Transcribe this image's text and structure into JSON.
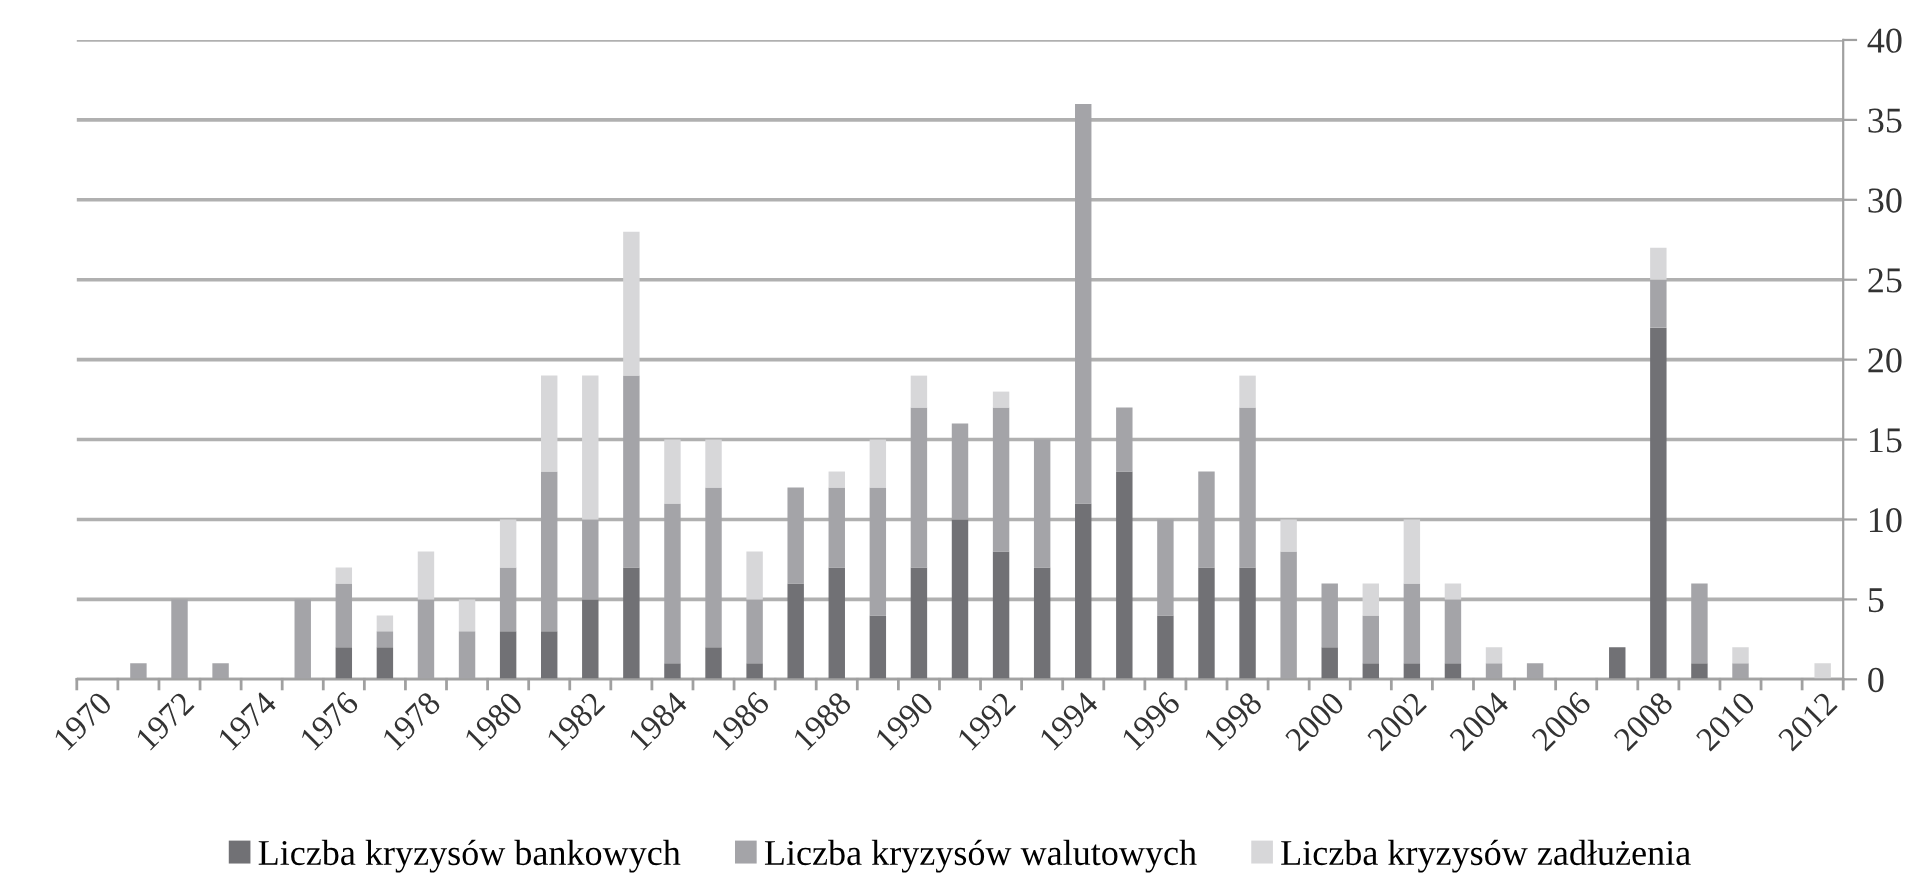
{
  "chart_data": {
    "type": "bar",
    "stacked": true,
    "categories": [
      "1970",
      null,
      "1972",
      null,
      "1974",
      null,
      "1976",
      null,
      "1978",
      null,
      "1980",
      null,
      "1982",
      null,
      "1984",
      null,
      "1986",
      null,
      "1988",
      null,
      "1990",
      null,
      "1992",
      null,
      "1994",
      null,
      "1996",
      null,
      "1998",
      null,
      "2000",
      null,
      "2002",
      null,
      "2004",
      null,
      "2006",
      null,
      "2008",
      null,
      "2010",
      null,
      "2012"
    ],
    "series": [
      {
        "name": "Liczba kryzysów bankowych",
        "color": "#717175",
        "values": [
          0,
          0,
          0,
          0,
          0,
          0,
          2,
          2,
          0,
          0,
          3,
          3,
          5,
          7,
          1,
          2,
          1,
          6,
          7,
          4,
          7,
          10,
          8,
          7,
          11,
          13,
          4,
          7,
          7,
          0,
          2,
          1,
          1,
          1,
          0,
          0,
          0,
          2,
          22,
          1,
          0,
          0,
          0
        ]
      },
      {
        "name": "Liczba kryzysów walutowych",
        "color": "#a4a4a8",
        "values": [
          0,
          1,
          5,
          1,
          0,
          5,
          4,
          1,
          5,
          3,
          4,
          10,
          5,
          12,
          10,
          10,
          4,
          6,
          5,
          8,
          10,
          6,
          9,
          8,
          25,
          4,
          6,
          6,
          10,
          8,
          4,
          3,
          5,
          4,
          1,
          1,
          0,
          0,
          3,
          5,
          1,
          0,
          0
        ]
      },
      {
        "name": "Liczba kryzysów zadłużenia",
        "color": "#d7d7d9",
        "values": [
          0,
          0,
          0,
          0,
          0,
          0,
          1,
          1,
          3,
          2,
          3,
          6,
          9,
          9,
          4,
          3,
          3,
          0,
          1,
          3,
          2,
          0,
          1,
          0,
          0,
          0,
          0,
          0,
          2,
          2,
          0,
          2,
          4,
          1,
          1,
          0,
          0,
          0,
          2,
          0,
          1,
          0,
          1
        ]
      }
    ],
    "ylim": [
      0,
      40
    ],
    "yticks": [
      0,
      5,
      10,
      15,
      20,
      25,
      30,
      35,
      40
    ],
    "grid": "y",
    "legend": "bottom"
  }
}
